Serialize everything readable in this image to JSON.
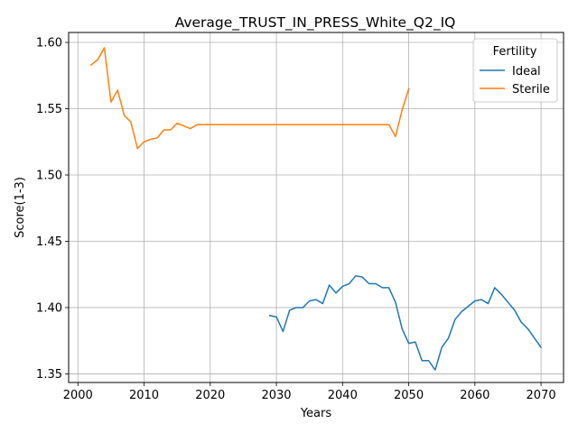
{
  "chart_data": {
    "type": "line",
    "title": "Average_TRUST_IN_PRESS_White_Q2_IQ",
    "xlabel": "Years",
    "ylabel": "Score(1-3)",
    "xlim": [
      1998.6,
      2073.4
    ],
    "ylim": [
      1.3435,
      1.6075
    ],
    "xticks": [
      2000,
      2010,
      2020,
      2030,
      2040,
      2050,
      2060,
      2070
    ],
    "yticks": [
      1.35,
      1.4,
      1.45,
      1.5,
      1.55,
      1.6
    ],
    "xtick_labels": [
      "2000",
      "2010",
      "2020",
      "2030",
      "2040",
      "2050",
      "2060",
      "2070"
    ],
    "ytick_labels": [
      "1.35",
      "1.40",
      "1.45",
      "1.50",
      "1.55",
      "1.60"
    ],
    "grid": true,
    "legend": {
      "title": "Fertility",
      "placement": "top-right"
    },
    "series": [
      {
        "name": "Ideal",
        "color": "#1f77b4",
        "x": [
          2029,
          2030,
          2031,
          2032,
          2033,
          2034,
          2035,
          2036,
          2037,
          2038,
          2039,
          2040,
          2041,
          2042,
          2043,
          2044,
          2045,
          2046,
          2047,
          2048,
          2049,
          2050,
          2051,
          2052,
          2053,
          2054,
          2055,
          2056,
          2057,
          2058,
          2059,
          2060,
          2061,
          2062,
          2063,
          2064,
          2065,
          2066,
          2067,
          2068,
          2069,
          2070
        ],
        "y": [
          1.394,
          1.393,
          1.382,
          1.398,
          1.4,
          1.4,
          1.405,
          1.406,
          1.403,
          1.417,
          1.411,
          1.416,
          1.418,
          1.424,
          1.423,
          1.418,
          1.418,
          1.415,
          1.415,
          1.404,
          1.384,
          1.373,
          1.374,
          1.36,
          1.36,
          1.353,
          1.37,
          1.377,
          1.391,
          1.397,
          1.401,
          1.405,
          1.406,
          1.403,
          1.415,
          1.41,
          1.404,
          1.398,
          1.389,
          1.384,
          1.377,
          1.37
        ]
      },
      {
        "name": "Sterile",
        "color": "#ff7f0e",
        "x": [
          2002,
          2003,
          2004,
          2005,
          2006,
          2007,
          2008,
          2009,
          2010,
          2011,
          2012,
          2013,
          2014,
          2015,
          2016,
          2017,
          2018,
          2019,
          2020,
          2021,
          2022,
          2023,
          2024,
          2025,
          2026,
          2027,
          2028,
          2029,
          2030,
          2031,
          2032,
          2033,
          2034,
          2035,
          2036,
          2037,
          2038,
          2039,
          2040,
          2041,
          2042,
          2043,
          2044,
          2045,
          2046,
          2047,
          2048,
          2049,
          2050
        ],
        "y": [
          1.583,
          1.587,
          1.596,
          1.555,
          1.564,
          1.545,
          1.54,
          1.52,
          1.525,
          1.527,
          1.528,
          1.534,
          1.534,
          1.539,
          1.537,
          1.535,
          1.538,
          1.538,
          1.538,
          1.538,
          1.538,
          1.538,
          1.538,
          1.538,
          1.538,
          1.538,
          1.538,
          1.538,
          1.538,
          1.538,
          1.538,
          1.538,
          1.538,
          1.538,
          1.538,
          1.538,
          1.538,
          1.538,
          1.538,
          1.538,
          1.538,
          1.538,
          1.538,
          1.538,
          1.538,
          1.538,
          1.529,
          1.549,
          1.565
        ]
      }
    ]
  }
}
